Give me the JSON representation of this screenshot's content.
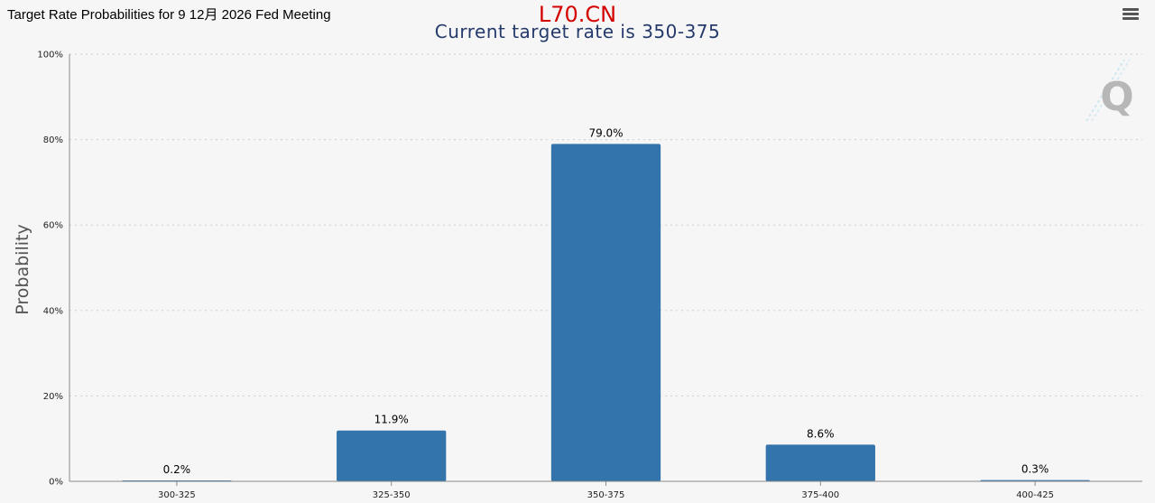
{
  "header": {
    "title": "Target Rate Probabilities for 9 12月 2026 Fed Meeting",
    "watermark": "L70.CN",
    "subtitle": "Current target rate is 350-375",
    "menu_icon": "hamburger-menu-icon"
  },
  "logo": {
    "letter": "Q",
    "color": "#b7b7b7"
  },
  "colors": {
    "bar": "#3274ab",
    "grid": "#cfcfcf",
    "axis": "#8a8a8a"
  },
  "chart_data": {
    "type": "bar",
    "title": "",
    "subtitle": "Current target rate is 350-375",
    "categories": [
      "300-325",
      "325-350",
      "350-375",
      "375-400",
      "400-425"
    ],
    "values": [
      0.2,
      11.9,
      79.0,
      8.6,
      0.3
    ],
    "value_labels": [
      "0.2%",
      "11.9%",
      "79.0%",
      "8.6%",
      "0.3%"
    ],
    "xlabel": "",
    "ylabel": "Probability",
    "ylim": [
      0,
      100
    ],
    "yticks": [
      0,
      20,
      40,
      60,
      80,
      100
    ],
    "ytick_labels": [
      "0%",
      "20%",
      "40%",
      "60%",
      "80%",
      "100%"
    ],
    "grid": true,
    "legend": "none"
  }
}
